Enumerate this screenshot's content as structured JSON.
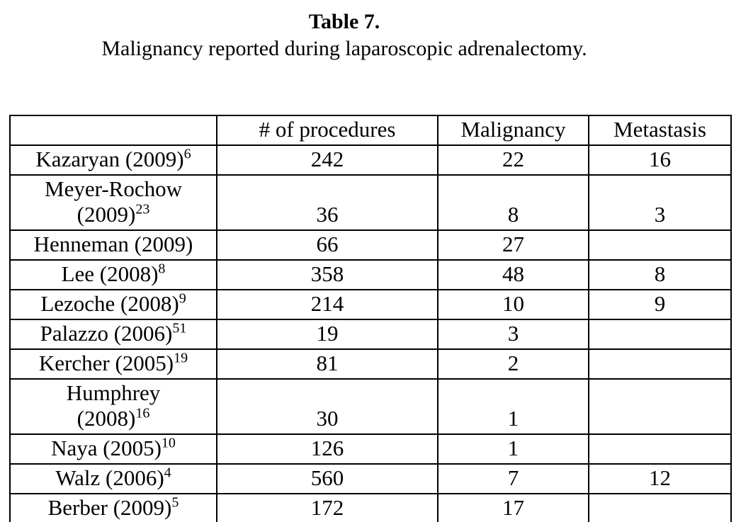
{
  "caption": {
    "title": "Table 7.",
    "subtitle": "Malignancy reported during laparoscopic adrenalectomy."
  },
  "table": {
    "columns": [
      "",
      "# of procedures",
      "Malignancy",
      "Metastasis"
    ],
    "rows": [
      {
        "study_lines": [
          "Kazaryan (2009)"
        ],
        "sup": "6",
        "procedures": "242",
        "malignancy": "22",
        "metastasis": "16"
      },
      {
        "study_lines": [
          "Meyer-Rochow",
          "(2009)"
        ],
        "sup": "23",
        "procedures": "36",
        "malignancy": "8",
        "metastasis": "3"
      },
      {
        "study_lines": [
          "Henneman (2009)"
        ],
        "sup": "",
        "procedures": "66",
        "malignancy": "27",
        "metastasis": ""
      },
      {
        "study_lines": [
          "Lee (2008)"
        ],
        "sup": "8",
        "procedures": "358",
        "malignancy": "48",
        "metastasis": "8"
      },
      {
        "study_lines": [
          "Lezoche (2008)"
        ],
        "sup": "9",
        "procedures": "214",
        "malignancy": "10",
        "metastasis": "9"
      },
      {
        "study_lines": [
          "Palazzo (2006)"
        ],
        "sup": "51",
        "procedures": "19",
        "malignancy": "3",
        "metastasis": ""
      },
      {
        "study_lines": [
          "Kercher (2005)"
        ],
        "sup": "19",
        "procedures": "81",
        "malignancy": "2",
        "metastasis": ""
      },
      {
        "study_lines": [
          "Humphrey",
          "(2008)"
        ],
        "sup": "16",
        "procedures": "30",
        "malignancy": "1",
        "metastasis": ""
      },
      {
        "study_lines": [
          "Naya (2005)"
        ],
        "sup": "10",
        "procedures": "126",
        "malignancy": "1",
        "metastasis": ""
      },
      {
        "study_lines": [
          "Walz (2006)"
        ],
        "sup": "4",
        "procedures": "560",
        "malignancy": "7",
        "metastasis": "12"
      },
      {
        "study_lines": [
          "Berber (2009)"
        ],
        "sup": "5",
        "procedures": "172",
        "malignancy": "17",
        "metastasis": ""
      }
    ]
  },
  "colors": {
    "text": "#000000",
    "background": "#ffffff",
    "border": "#000000"
  }
}
